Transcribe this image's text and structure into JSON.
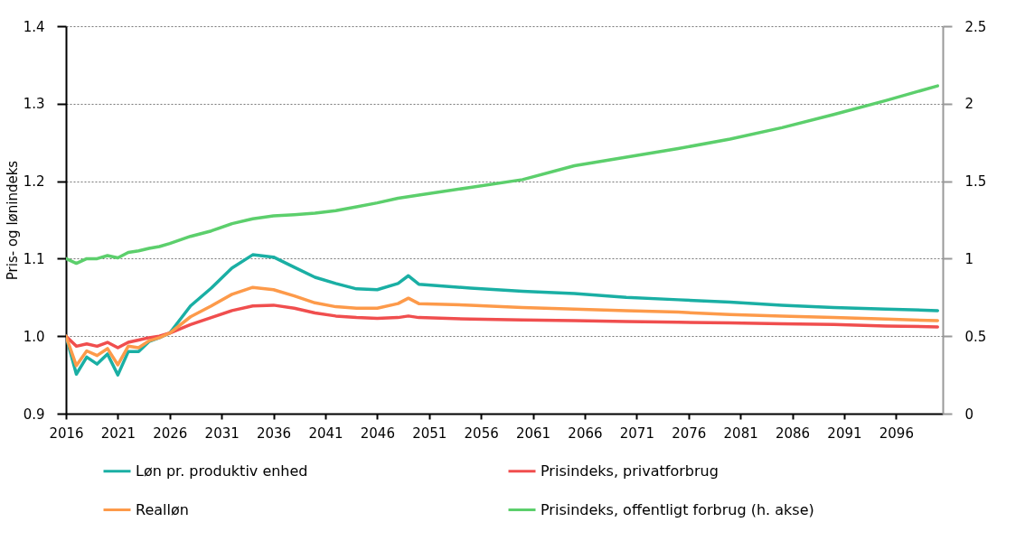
{
  "chart_data": {
    "type": "line",
    "ylabel": "Pris- og lønindeks",
    "x": [
      2016,
      2017,
      2018,
      2019,
      2020,
      2021,
      2022,
      2023,
      2024,
      2025,
      2026,
      2028,
      2030,
      2032,
      2034,
      2036,
      2038,
      2040,
      2042,
      2044,
      2046,
      2048,
      2049,
      2050,
      2055,
      2060,
      2065,
      2070,
      2075,
      2080,
      2085,
      2090,
      2095,
      2100
    ],
    "xlim": [
      2016,
      2100.5
    ],
    "xticks": [
      2016,
      2021,
      2026,
      2031,
      2036,
      2041,
      2046,
      2051,
      2056,
      2061,
      2066,
      2071,
      2076,
      2081,
      2086,
      2091,
      2096
    ],
    "ylim": [
      0.9,
      1.4
    ],
    "yticks": [
      0.9,
      {
        "value": 1,
        "label": "1.0"
      },
      1.1,
      1.2,
      1.3,
      1.4
    ],
    "y2lim": [
      0,
      2.5
    ],
    "y2ticks": [
      0,
      0.5,
      1,
      1.5,
      2,
      2.5
    ],
    "series": [
      {
        "name": "Løn pr. produktiv enhed",
        "color": "#1aafa4",
        "values": [
          1.0,
          0.951,
          0.973,
          0.964,
          0.977,
          0.95,
          0.98,
          0.98,
          0.993,
          0.998,
          1.004,
          1.039,
          1.062,
          1.088,
          1.105,
          1.102,
          1.089,
          1.076,
          1.068,
          1.061,
          1.06,
          1.068,
          1.078,
          1.067,
          1.062,
          1.058,
          1.055,
          1.05,
          1.047,
          1.044,
          1.04,
          1.037,
          1.035,
          1.033
        ]
      },
      {
        "name": "Prisindeks, privatforbrug",
        "color": "#f04e4e",
        "values": [
          1.0,
          0.987,
          0.99,
          0.987,
          0.992,
          0.985,
          0.992,
          0.995,
          0.998,
          1.0,
          1.004,
          1.015,
          1.024,
          1.033,
          1.039,
          1.04,
          1.036,
          1.03,
          1.026,
          1.024,
          1.023,
          1.024,
          1.026,
          1.024,
          1.022,
          1.021,
          1.02,
          1.019,
          1.018,
          1.017,
          1.016,
          1.015,
          1.013,
          1.012
        ]
      },
      {
        "name": "Realløn",
        "color": "#fd9a4a",
        "values": [
          1.0,
          0.962,
          0.981,
          0.975,
          0.984,
          0.963,
          0.987,
          0.985,
          0.994,
          0.998,
          1.004,
          1.025,
          1.039,
          1.054,
          1.063,
          1.06,
          1.052,
          1.043,
          1.038,
          1.036,
          1.036,
          1.042,
          1.049,
          1.042,
          1.04,
          1.037,
          1.035,
          1.033,
          1.031,
          1.028,
          1.026,
          1.024,
          1.022,
          1.02
        ]
      },
      {
        "name": "Prisindeks, offentligt forbrug (h. akse)",
        "color": "#5ccf6c",
        "axis": "y2",
        "values": [
          1.0,
          0.97,
          1.0,
          1.0,
          1.02,
          1.005,
          1.04,
          1.05,
          1.066,
          1.078,
          1.098,
          1.144,
          1.179,
          1.226,
          1.257,
          1.276,
          1.284,
          1.294,
          1.31,
          1.335,
          1.36,
          1.39,
          1.4,
          1.41,
          1.46,
          1.51,
          1.6,
          1.655,
          1.71,
          1.772,
          1.845,
          1.93,
          2.02,
          2.115
        ]
      }
    ],
    "grid": "y",
    "legend": "bottom",
    "line_style": "solid",
    "marker": "none"
  }
}
